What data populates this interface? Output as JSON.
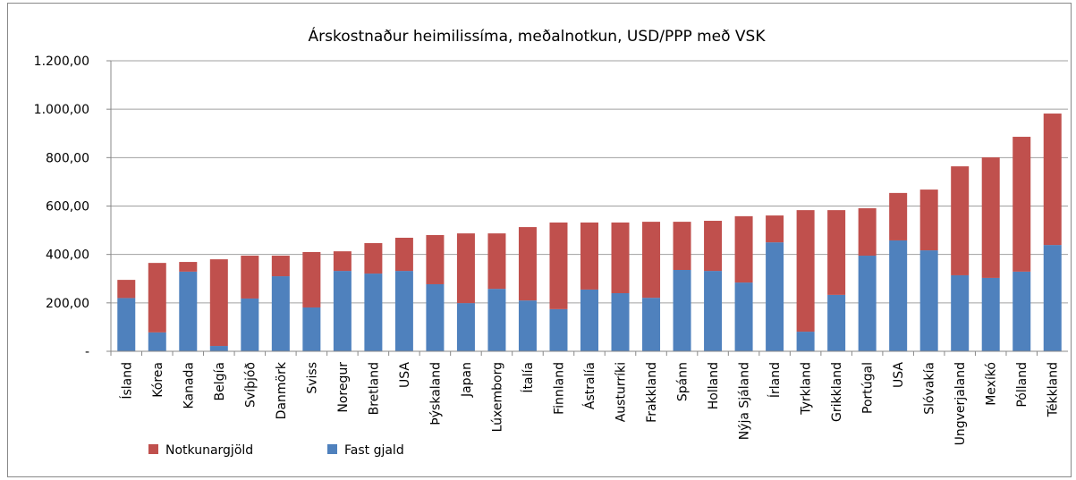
{
  "chart_data": {
    "type": "stacked_bar",
    "title": "Árskostnaður heimilissíma, meðalnotkun, USD/PPP með VSK",
    "categories": [
      "Ísland",
      "Kórea",
      "Kanada",
      "Belgía",
      "Svíþjóð",
      "Danmörk",
      "Sviss",
      "Noregur",
      "Bretland",
      "USA",
      "Þýskaland",
      "Japan",
      "Lúxemborg",
      "Ítalía",
      "Finnland",
      "Ástralía",
      "Austurríki",
      "Frakkland",
      "Spánn",
      "Holland",
      "Nýja Sjáland",
      "Írland",
      "Tyrkland",
      "Grikkland",
      "Portúgal",
      "USA",
      "Slóvakía",
      "Ungverjaland",
      "Mexíkó",
      "Pólland",
      "Tékkland"
    ],
    "series": [
      {
        "name": "Notkunargjöld",
        "color": "#c0504d",
        "values": [
          75,
          287,
          40,
          358,
          177,
          85,
          229,
          81,
          126,
          137,
          203,
          288,
          229,
          303,
          358,
          277,
          292,
          314,
          199,
          207,
          274,
          111,
          502,
          350,
          196,
          196,
          251,
          450,
          498,
          557,
          543
        ]
      },
      {
        "name": "Fast gjald",
        "color": "#4f81bd",
        "values": [
          220,
          78,
          329,
          22,
          218,
          310,
          181,
          332,
          321,
          332,
          277,
          199,
          258,
          210,
          174,
          255,
          240,
          221,
          336,
          332,
          284,
          450,
          81,
          233,
          395,
          458,
          417,
          314,
          303,
          329,
          439
        ]
      }
    ],
    "ylim": [
      0,
      1200
    ],
    "yticks": [
      {
        "value": 0,
        "label": "-"
      },
      {
        "value": 200,
        "label": "200,00"
      },
      {
        "value": 400,
        "label": "400,00"
      },
      {
        "value": 600,
        "label": "600,00"
      },
      {
        "value": 800,
        "label": "800,00"
      },
      {
        "value": 1000,
        "label": "1.000,00"
      },
      {
        "value": 1200,
        "label": "1.200,00"
      }
    ],
    "grid": true,
    "legend": "bottom-left"
  }
}
